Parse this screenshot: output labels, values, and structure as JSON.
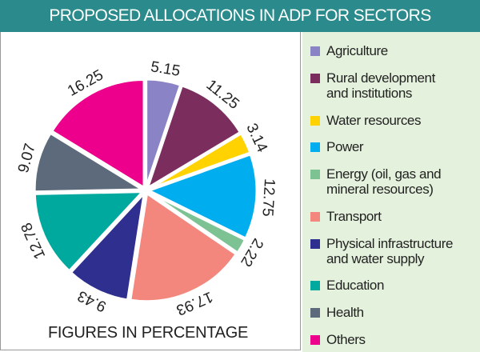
{
  "chart_data": {
    "type": "pie",
    "title": "PROPOSED ALLOCATIONS IN ADP FOR SECTORS",
    "footnote": "FIGURES IN PERCENTAGE",
    "categories": [
      "Agriculture",
      "Rural development and institutions",
      "Water resources",
      "Power",
      "Energy (oil, gas and mineral resources)",
      "Transport",
      "Physical infrastructure and water supply",
      "Education",
      "Health",
      "Others"
    ],
    "values": [
      5.15,
      11.25,
      3.14,
      12.75,
      2.22,
      17.93,
      9.43,
      12.78,
      9.07,
      16.25
    ],
    "colors": [
      "#8a84c6",
      "#7b2d5e",
      "#ffd200",
      "#00aeef",
      "#7cc293",
      "#f4877d",
      "#2e2f8e",
      "#00a99d",
      "#5d6a7b",
      "#ec008c"
    ],
    "legend": "right"
  }
}
